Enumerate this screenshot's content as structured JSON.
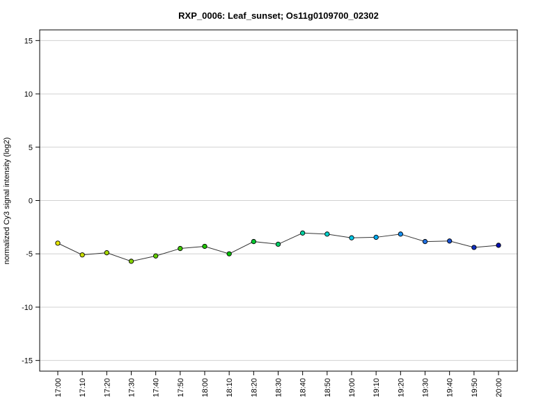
{
  "chart_data": {
    "type": "line",
    "title": "RXP_0006: Leaf_sunset; Os11g0109700_02302",
    "xlabel": "",
    "ylabel": "normalized Cy3 signal intensity (log2)",
    "ylim": [
      -16,
      16
    ],
    "yticks": [
      -15,
      -10,
      -5,
      0,
      5,
      10,
      15
    ],
    "grid": true,
    "categories": [
      "17:00",
      "17:10",
      "17:20",
      "17:30",
      "17:40",
      "17:50",
      "18:00",
      "18:10",
      "18:20",
      "18:30",
      "18:40",
      "18:50",
      "19:00",
      "19:10",
      "19:20",
      "19:30",
      "19:40",
      "19:50",
      "20:00"
    ],
    "values": [
      -4.0,
      -5.1,
      -4.9,
      -5.7,
      -5.2,
      -4.5,
      -4.3,
      -5.0,
      -3.85,
      -4.1,
      -3.05,
      -3.15,
      -3.5,
      -3.45,
      -3.15,
      -3.85,
      -3.8,
      -4.4,
      -4.2
    ],
    "point_colors": [
      "#e6e600",
      "#c8dc00",
      "#a6d800",
      "#84d200",
      "#62cc00",
      "#40c800",
      "#20c400",
      "#00c000",
      "#00c830",
      "#00cc66",
      "#00cfa0",
      "#00d2cc",
      "#00c8e8",
      "#00aaf0",
      "#1890f0",
      "#2070e0",
      "#1850d0",
      "#1030c0",
      "#0010b0"
    ]
  }
}
